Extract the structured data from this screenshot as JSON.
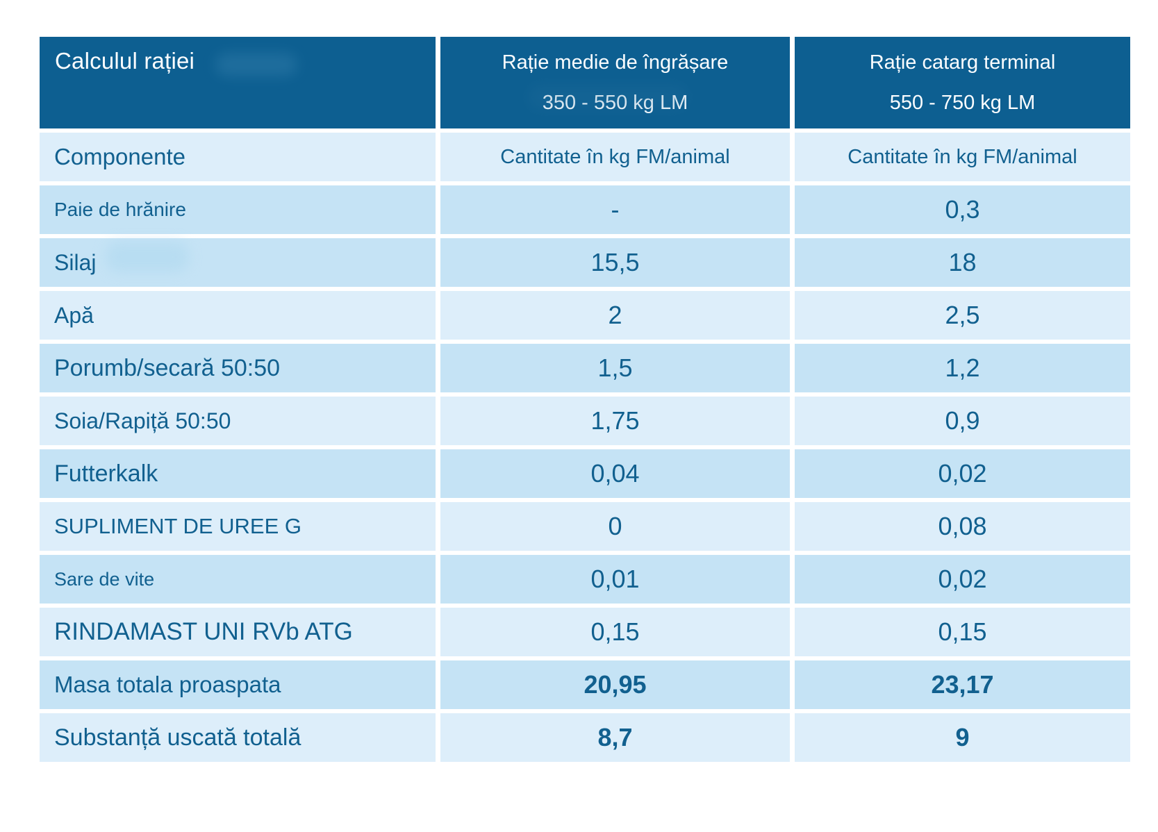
{
  "table": {
    "header": {
      "title": "Calculul rației",
      "col2": {
        "line1": "Rație medie de îngrășare",
        "line2": "350 - 550 kg LM"
      },
      "col3": {
        "line1": "Rație catarg terminal",
        "line2": "550 - 750 kg LM"
      }
    },
    "subheader": {
      "label": "Componente",
      "col2": "Cantitate în kg FM/animal",
      "col3": "Cantitate în kg FM/animal"
    },
    "rows": [
      {
        "label": "Paie de hrănire",
        "col2": "-",
        "col3": "0,3"
      },
      {
        "label": "Silaj",
        "col2": "15,5",
        "col3": "18"
      },
      {
        "label": "Apă",
        "col2": "2",
        "col3": "2,5"
      },
      {
        "label": "Porumb/secară 50:50",
        "col2": "1,5",
        "col3": "1,2"
      },
      {
        "label": "Soia/Rapiță 50:50",
        "col2": "1,75",
        "col3": "0,9"
      },
      {
        "label": "Futterkalk",
        "col2": "0,04",
        "col3": "0,02"
      },
      {
        "label": "SUPLIMENT DE UREE G",
        "col2": "0",
        "col3": "0,08"
      },
      {
        "label": "Sare de vite",
        "col2": "0,01",
        "col3": "0,02"
      },
      {
        "label": "RINDAMAST UNI RVb ATG",
        "col2": "0,15",
        "col3": "0,15"
      },
      {
        "label": "Masa totala proaspata",
        "col2": "20,95",
        "col3": "23,17"
      },
      {
        "label": "Substanță uscată totală",
        "col2": "8,7",
        "col3": "9"
      }
    ]
  },
  "colors": {
    "header_bg": "#0d5f91",
    "row_medium": "#c5e3f5",
    "row_light": "#ddeefa",
    "text": "#11608f"
  }
}
